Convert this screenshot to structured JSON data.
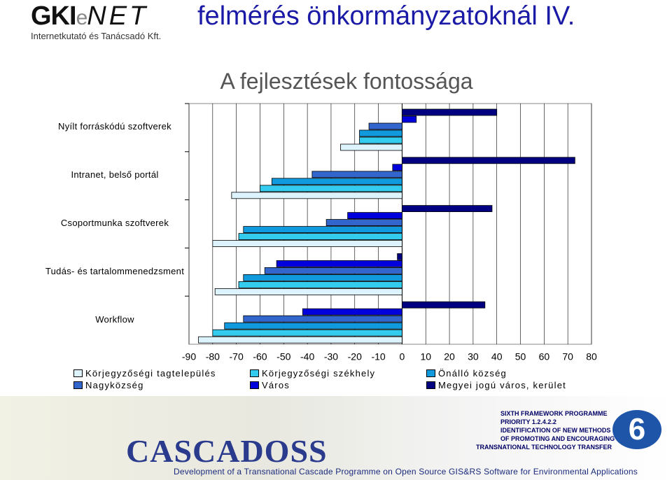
{
  "header": {
    "logo_gki": "GKI",
    "logo_e": "e",
    "logo_net": "NET",
    "logo_sub": "Internetkutató és Tanácsadó Kft.",
    "title": "felmérés önkormányzatoknál IV."
  },
  "chart_data": {
    "type": "hbar",
    "title": "A fejlesztések fontossága",
    "categories": [
      "Nyílt forráskódú szoftverek",
      "Intranet, belső portál",
      "Csoportmunka szoftverek",
      "Tudás- és tartalommenedzsment",
      "Workflow"
    ],
    "series": [
      {
        "name": "Körjegyzőségi tagtelepülés",
        "color": "#ddf4ff",
        "values": [
          -26,
          -72,
          -80,
          -79,
          -86
        ]
      },
      {
        "name": "Körjegyzőségi székhely",
        "color": "#33ccee",
        "values": [
          -18,
          -60,
          -69,
          -69,
          -80
        ]
      },
      {
        "name": "Önálló község",
        "color": "#1199dd",
        "values": [
          -18,
          -55,
          -67,
          -67,
          -75
        ]
      },
      {
        "name": "Nagyközség",
        "color": "#3366cc",
        "values": [
          -14,
          -38,
          -32,
          -58,
          -67
        ]
      },
      {
        "name": "Város",
        "color": "#0000dd",
        "values": [
          6,
          -4,
          -23,
          -53,
          -42
        ]
      },
      {
        "name": "Megyei jogú város, kerület",
        "color": "#000080",
        "values": [
          40,
          73,
          38,
          -2,
          35
        ]
      }
    ],
    "xlim": [
      -90,
      80
    ],
    "xticks": [
      -90,
      -80,
      -70,
      -60,
      -50,
      -40,
      -30,
      -20,
      -10,
      0,
      10,
      20,
      30,
      40,
      50,
      60,
      70,
      80
    ],
    "grid": true
  },
  "footer": {
    "logo": "CASCADOSS",
    "subtitle": "Development of a Transnational Cascade Programme on Open Source GIS&RS Software for Environmental Applications",
    "programme": [
      "SIXTH FRAMEWORK PROGRAMME",
      "PRIORITY 1.2.4.2.2",
      "IDENTIFICATION OF NEW METHODS",
      "OF PROMOTING AND ENCOURAGING",
      "TRANSNATIONAL TECHNOLOGY TRANSFER"
    ],
    "badge": "6"
  }
}
